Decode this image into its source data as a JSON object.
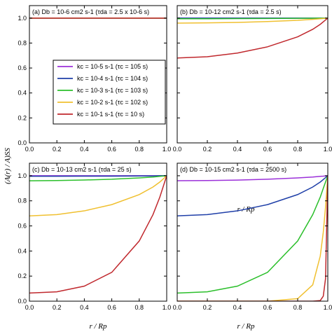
{
  "figure": {
    "ylabel": "(A(r) / A)SS",
    "xlabel": "r / Rp",
    "legend": {
      "placement": "left-middle",
      "entries": [
        {
          "text": "kc = 10-5 s-1 (τc = 105 s)",
          "color": "#9b30d9"
        },
        {
          "text": "kc = 10-4 s-1 (τc = 104 s)",
          "color": "#1f3fa8"
        },
        {
          "text": "kc = 10-3 s-1 (τc = 103 s)",
          "color": "#2bbf2b"
        },
        {
          "text": "kc = 10-2 s-1 (τc = 102 s)",
          "color": "#f0c030"
        },
        {
          "text": "kc = 10-1 s-1 (τc = 10 s)",
          "color": "#c0282d"
        }
      ]
    }
  },
  "chart_data": [
    {
      "type": "line",
      "title": "(a) Db = 10-6 cm2 s-1 (τda = 2.5 x 10-6 s)",
      "xlim": [
        0,
        1
      ],
      "ylim": [
        0,
        1.1
      ],
      "xticks": [
        "0.0",
        "0.2",
        "0.4",
        "0.6",
        "0.8",
        "1.0"
      ],
      "yticks": [
        "0.0",
        "0.2",
        "0.4",
        "0.6",
        "0.8",
        "1.0"
      ],
      "grid": false,
      "x": [
        0,
        0.2,
        0.4,
        0.6,
        0.8,
        0.9,
        0.95,
        1.0
      ],
      "series": [
        {
          "color": "#9b30d9",
          "values": [
            1,
            1,
            1,
            1,
            1,
            1,
            1,
            1
          ]
        },
        {
          "color": "#1f3fa8",
          "values": [
            1,
            1,
            1,
            1,
            1,
            1,
            1,
            1
          ]
        },
        {
          "color": "#2bbf2b",
          "values": [
            1,
            1,
            1,
            1,
            1,
            1,
            1,
            1
          ]
        },
        {
          "color": "#f0c030",
          "values": [
            1,
            1,
            1,
            1,
            1,
            1,
            1,
            1
          ]
        },
        {
          "color": "#c0282d",
          "values": [
            1,
            1,
            1,
            1,
            1,
            1,
            1,
            1
          ]
        }
      ]
    },
    {
      "type": "line",
      "title": "(b) Db = 10-12 cm2 s-1 (τda = 2.5 s)",
      "xlim": [
        0,
        1
      ],
      "ylim": [
        0,
        1.1
      ],
      "xticks": [
        "0.0",
        "0.2",
        "0.4",
        "0.6",
        "0.8",
        "1.0"
      ],
      "yticks": [],
      "grid": false,
      "x": [
        0,
        0.2,
        0.4,
        0.6,
        0.8,
        0.9,
        0.95,
        1.0
      ],
      "series": [
        {
          "color": "#9b30d9",
          "values": [
            1.0,
            1.0,
            1.0,
            1.0,
            1.0,
            1.0,
            1.0,
            1.0
          ]
        },
        {
          "color": "#1f3fa8",
          "values": [
            1.0,
            1.0,
            1.0,
            1.0,
            1.0,
            1.0,
            1.0,
            1.0
          ]
        },
        {
          "color": "#2bbf2b",
          "values": [
            0.995,
            0.995,
            0.996,
            0.997,
            0.998,
            0.999,
            1.0,
            1.0
          ]
        },
        {
          "color": "#f0c030",
          "values": [
            0.96,
            0.962,
            0.965,
            0.972,
            0.982,
            0.99,
            0.995,
            1.0
          ]
        },
        {
          "color": "#c0282d",
          "values": [
            0.68,
            0.69,
            0.72,
            0.77,
            0.85,
            0.91,
            0.95,
            1.0
          ]
        }
      ]
    },
    {
      "type": "line",
      "title": "(c) Db = 10-13 cm2 s-1 (τda = 25 s)",
      "xlim": [
        0,
        1
      ],
      "ylim": [
        0,
        1.1
      ],
      "xticks": [
        "0.0",
        "0.2",
        "0.4",
        "0.6",
        "0.8",
        "1.0"
      ],
      "yticks": [
        "0.0",
        "0.2",
        "0.4",
        "0.6",
        "0.8",
        "1.0"
      ],
      "grid": false,
      "x": [
        0,
        0.2,
        0.4,
        0.6,
        0.8,
        0.9,
        0.95,
        1.0
      ],
      "series": [
        {
          "color": "#9b30d9",
          "values": [
            1.0,
            1.0,
            1.0,
            1.0,
            1.0,
            1.0,
            1.0,
            1.0
          ]
        },
        {
          "color": "#1f3fa8",
          "values": [
            0.996,
            0.996,
            0.997,
            0.997,
            0.998,
            0.999,
            1.0,
            1.0
          ]
        },
        {
          "color": "#2bbf2b",
          "values": [
            0.96,
            0.962,
            0.966,
            0.972,
            0.983,
            0.99,
            0.995,
            1.0
          ]
        },
        {
          "color": "#f0c030",
          "values": [
            0.68,
            0.69,
            0.72,
            0.77,
            0.85,
            0.91,
            0.95,
            1.0
          ]
        },
        {
          "color": "#c0282d",
          "values": [
            0.065,
            0.075,
            0.12,
            0.23,
            0.48,
            0.69,
            0.83,
            1.0
          ]
        }
      ]
    },
    {
      "type": "line",
      "title": "(d) Db = 10-15 cm2 s-1 (τda = 2500 s)",
      "xlim": [
        0,
        1
      ],
      "ylim": [
        0,
        1.1
      ],
      "xticks": [
        "0.0",
        "0.2",
        "0.4",
        "0.6",
        "0.8",
        "1.0"
      ],
      "yticks": [],
      "grid": false,
      "x": [
        0,
        0.2,
        0.4,
        0.6,
        0.8,
        0.9,
        0.95,
        0.97,
        0.985,
        1.0
      ],
      "series": [
        {
          "color": "#9b30d9",
          "values": [
            0.96,
            0.962,
            0.965,
            0.972,
            0.983,
            0.99,
            0.995,
            0.997,
            0.999,
            1.0
          ]
        },
        {
          "color": "#1f3fa8",
          "values": [
            0.68,
            0.69,
            0.72,
            0.77,
            0.85,
            0.91,
            0.95,
            0.97,
            0.985,
            1.0
          ]
        },
        {
          "color": "#2bbf2b",
          "values": [
            0.065,
            0.075,
            0.12,
            0.23,
            0.48,
            0.69,
            0.83,
            0.9,
            0.95,
            1.0
          ]
        },
        {
          "color": "#f0c030",
          "values": [
            0.0,
            0.0,
            0.0,
            0.0,
            0.02,
            0.13,
            0.36,
            0.55,
            0.75,
            1.0
          ]
        },
        {
          "color": "#c0282d",
          "values": [
            0.0,
            0.0,
            0.0,
            0.0,
            0.0,
            0.0,
            0.005,
            0.04,
            0.18,
            1.0
          ]
        }
      ]
    }
  ]
}
